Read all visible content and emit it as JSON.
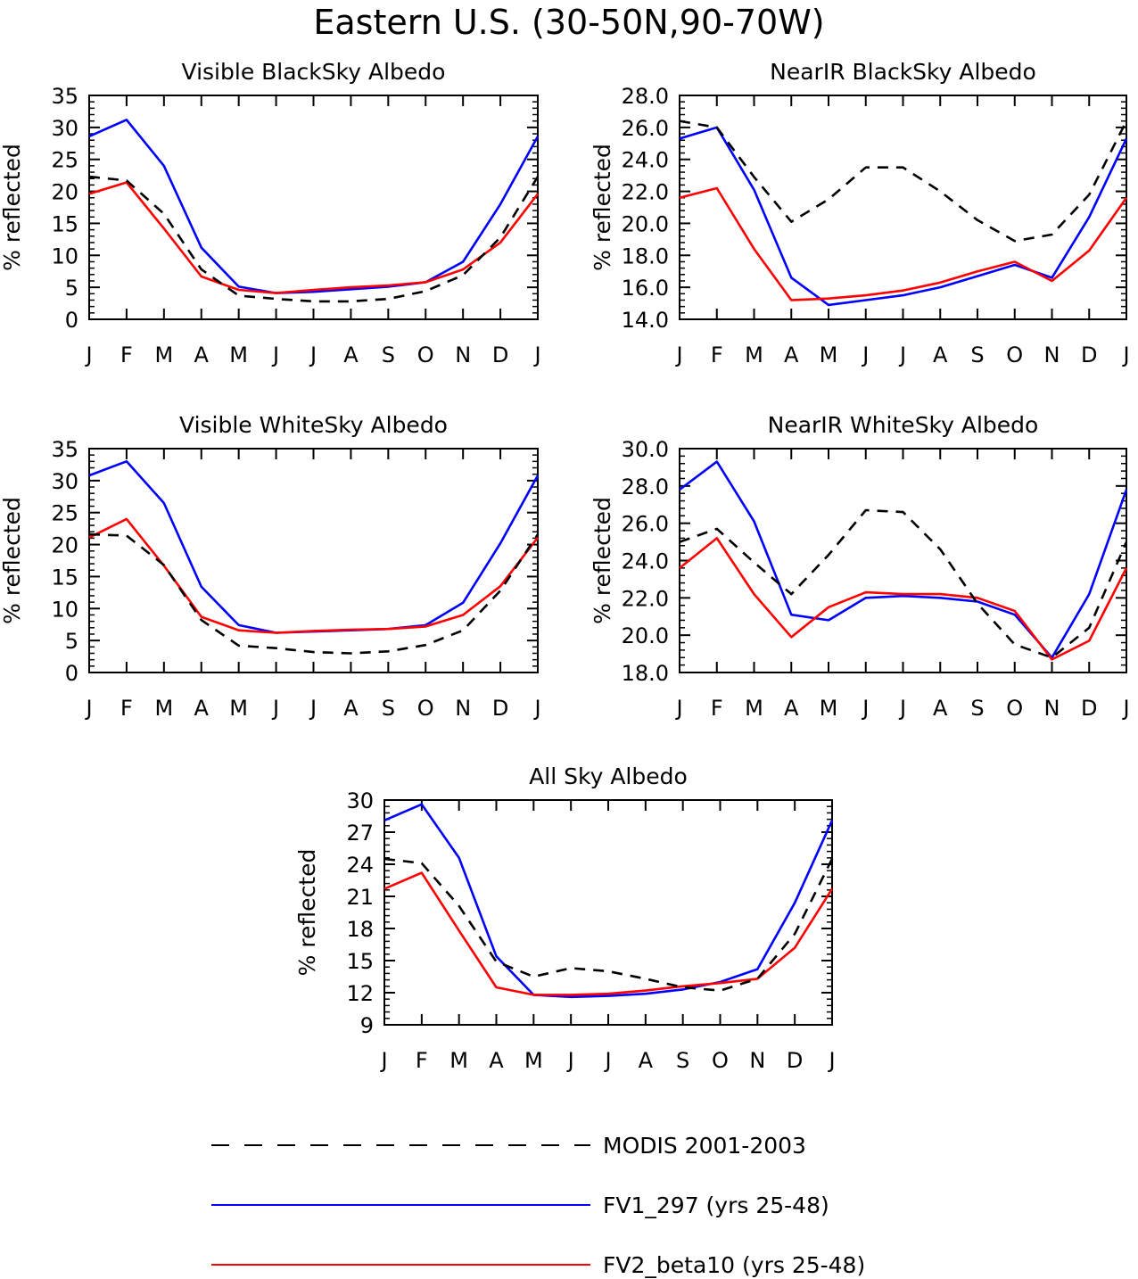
{
  "figure_title": "Eastern U.S. (30-50N,90-70W)",
  "legend": [
    {
      "label": "MODIS 2001-2003",
      "color": "#000000",
      "dashed": true
    },
    {
      "label": "FV1_297 (yrs 25-48)",
      "color": "#0000ff",
      "dashed": false
    },
    {
      "label": "FV2_beta10 (yrs 25-48)",
      "color": "#ff0000",
      "dashed": false
    }
  ],
  "chart_data": [
    {
      "type": "line",
      "title": "Visible BlackSky Albedo",
      "ylabel": "% reflected",
      "x": [
        "J",
        "F",
        "M",
        "A",
        "M",
        "J",
        "J",
        "A",
        "S",
        "O",
        "N",
        "D",
        "J"
      ],
      "ylim": [
        0,
        35
      ],
      "yticks": [
        "0",
        "5",
        "10",
        "15",
        "20",
        "25",
        "30",
        "35"
      ],
      "series": [
        {
          "name": "MODIS 2001-2003",
          "values": [
            22.3,
            21.7,
            16.5,
            7.8,
            3.7,
            3.2,
            2.8,
            2.8,
            3.2,
            4.4,
            6.9,
            12.8,
            22.3
          ]
        },
        {
          "name": "FV1_297 (yrs 25-48)",
          "values": [
            28.6,
            31.2,
            24.0,
            11.2,
            5.1,
            4.1,
            4.3,
            4.7,
            5.1,
            5.8,
            9.0,
            18.0,
            28.6
          ]
        },
        {
          "name": "FV2_beta10 (yrs 25-48)",
          "values": [
            19.6,
            21.4,
            14.2,
            6.7,
            4.6,
            4.1,
            4.6,
            5.0,
            5.3,
            5.8,
            7.8,
            12.0,
            19.6
          ]
        }
      ]
    },
    {
      "type": "line",
      "title": "NearIR BlackSky Albedo",
      "ylabel": "% reflected",
      "x": [
        "J",
        "F",
        "M",
        "A",
        "M",
        "J",
        "J",
        "A",
        "S",
        "O",
        "N",
        "D",
        "J"
      ],
      "ylim": [
        14,
        28
      ],
      "yticks": [
        "14.0",
        "16.0",
        "18.0",
        "20.0",
        "22.0",
        "24.0",
        "26.0",
        "28.0"
      ],
      "series": [
        {
          "name": "MODIS 2001-2003",
          "values": [
            26.4,
            26.0,
            22.9,
            20.1,
            21.5,
            23.5,
            23.5,
            22.0,
            20.2,
            18.9,
            19.3,
            21.8,
            26.4
          ]
        },
        {
          "name": "FV1_297 (yrs 25-48)",
          "values": [
            25.3,
            26.0,
            22.1,
            16.6,
            14.9,
            15.2,
            15.5,
            16.0,
            16.7,
            17.4,
            16.6,
            20.4,
            25.3
          ]
        },
        {
          "name": "FV2_beta10 (yrs 25-48)",
          "values": [
            21.6,
            22.2,
            18.4,
            15.2,
            15.3,
            15.5,
            15.8,
            16.3,
            17.0,
            17.6,
            16.4,
            18.3,
            21.6
          ]
        }
      ]
    },
    {
      "type": "line",
      "title": "Visible WhiteSky Albedo",
      "ylabel": "% reflected",
      "x": [
        "J",
        "F",
        "M",
        "A",
        "M",
        "J",
        "J",
        "A",
        "S",
        "O",
        "N",
        "D",
        "J"
      ],
      "ylim": [
        0,
        35
      ],
      "yticks": [
        "0",
        "5",
        "10",
        "15",
        "20",
        "25",
        "30",
        "35"
      ],
      "series": [
        {
          "name": "MODIS 2001-2003",
          "values": [
            21.6,
            21.4,
            16.8,
            8.2,
            4.2,
            3.8,
            3.2,
            3.0,
            3.3,
            4.3,
            6.6,
            12.8,
            21.6
          ]
        },
        {
          "name": "FV1_297 (yrs 25-48)",
          "values": [
            30.8,
            33.0,
            26.5,
            13.4,
            7.4,
            6.2,
            6.4,
            6.6,
            6.8,
            7.4,
            10.9,
            20.2,
            30.8
          ]
        },
        {
          "name": "FV2_beta10 (yrs 25-48)",
          "values": [
            21.1,
            24.0,
            16.7,
            8.7,
            6.6,
            6.2,
            6.5,
            6.7,
            6.8,
            7.2,
            9.0,
            13.5,
            21.1
          ]
        }
      ]
    },
    {
      "type": "line",
      "title": "NearIR WhiteSky Albedo",
      "ylabel": "% reflected",
      "x": [
        "J",
        "F",
        "M",
        "A",
        "M",
        "J",
        "J",
        "A",
        "S",
        "O",
        "N",
        "D",
        "J"
      ],
      "ylim": [
        18,
        30
      ],
      "yticks": [
        "18.0",
        "20.0",
        "22.0",
        "24.0",
        "26.0",
        "28.0",
        "30.0"
      ],
      "series": [
        {
          "name": "MODIS 2001-2003",
          "values": [
            25.0,
            25.7,
            23.9,
            22.2,
            24.3,
            26.7,
            26.6,
            24.6,
            21.7,
            19.5,
            18.8,
            20.4,
            25.0
          ]
        },
        {
          "name": "FV1_297 (yrs 25-48)",
          "values": [
            27.8,
            29.3,
            26.1,
            21.1,
            20.8,
            22.0,
            22.1,
            22.0,
            21.8,
            21.1,
            18.8,
            22.2,
            27.8
          ]
        },
        {
          "name": "FV2_beta10 (yrs 25-48)",
          "values": [
            23.6,
            25.2,
            22.2,
            19.9,
            21.5,
            22.3,
            22.2,
            22.2,
            22.0,
            21.3,
            18.7,
            19.7,
            23.6
          ]
        }
      ]
    },
    {
      "type": "line",
      "title": "All Sky Albedo",
      "ylabel": "% reflected",
      "x": [
        "J",
        "F",
        "M",
        "A",
        "M",
        "J",
        "J",
        "A",
        "S",
        "O",
        "N",
        "D",
        "J"
      ],
      "ylim": [
        9,
        30
      ],
      "yticks": [
        "9",
        "12",
        "15",
        "18",
        "21",
        "24",
        "27",
        "30"
      ],
      "series": [
        {
          "name": "MODIS 2001-2003",
          "values": [
            24.5,
            24.1,
            20.1,
            14.9,
            13.5,
            14.3,
            14.0,
            13.3,
            12.5,
            12.2,
            13.3,
            17.5,
            24.5
          ]
        },
        {
          "name": "FV1_297 (yrs 25-48)",
          "values": [
            28.1,
            29.6,
            24.6,
            15.4,
            11.8,
            11.6,
            11.7,
            11.9,
            12.3,
            13.0,
            14.2,
            20.4,
            28.1
          ]
        },
        {
          "name": "FV2_beta10 (yrs 25-48)",
          "values": [
            21.7,
            23.2,
            17.8,
            12.5,
            11.8,
            11.8,
            11.9,
            12.2,
            12.6,
            12.9,
            13.3,
            16.2,
            21.7
          ]
        }
      ]
    }
  ]
}
